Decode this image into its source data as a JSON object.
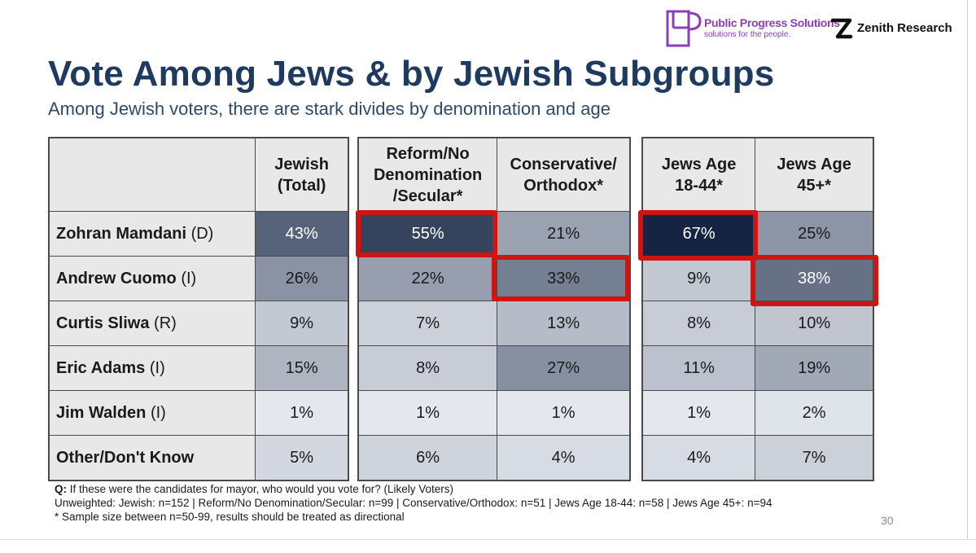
{
  "logos": {
    "pps_name": "Public Progress Solutions",
    "pps_tagline": "solutions for the people.",
    "zenith_name": "Zenith Research"
  },
  "title": "Vote Among Jews & by Jewish Subgroups",
  "subtitle": "Among Jewish voters, there are stark divides by denomination and age",
  "table": {
    "columns": [
      "Jewish\n(Total)",
      "Reform/No\nDenomination\n/Secular*",
      "Conservative/\nOrthodox*",
      "Jews Age\n18-44*",
      "Jews Age\n45+*"
    ],
    "rows": [
      {
        "name": "Zohran Mamdani",
        "party": "(D)",
        "values": [
          "43%",
          "55%",
          "21%",
          "67%",
          "25%"
        ]
      },
      {
        "name": "Andrew Cuomo",
        "party": "(I)",
        "values": [
          "26%",
          "22%",
          "33%",
          "9%",
          "38%"
        ]
      },
      {
        "name": "Curtis Sliwa",
        "party": "(R)",
        "values": [
          "9%",
          "7%",
          "13%",
          "8%",
          "10%"
        ]
      },
      {
        "name": "Eric Adams",
        "party": "(I)",
        "values": [
          "15%",
          "8%",
          "27%",
          "11%",
          "19%"
        ]
      },
      {
        "name": "Jim Walden",
        "party": "(I)",
        "values": [
          "1%",
          "1%",
          "1%",
          "1%",
          "2%"
        ]
      },
      {
        "name": "Other/Don't Know",
        "party": "",
        "values": [
          "5%",
          "6%",
          "4%",
          "4%",
          "7%"
        ]
      }
    ],
    "highlighted_cells": [
      {
        "row": 0,
        "col": 1
      },
      {
        "row": 1,
        "col": 2
      },
      {
        "row": 0,
        "col": 3
      },
      {
        "row": 1,
        "col": 4
      }
    ],
    "highlight_color": "#cf1414"
  },
  "notes": {
    "question_label": "Q:",
    "question": " If these were the candidates for mayor, who would you vote for? (Likely Voters)",
    "unweighted": "Unweighted: Jewish: n=152 | Reform/No Denomination/Secular: n=99 | Conservative/Orthodox: n=51 | Jews Age 18-44: n=58 | Jews Age 45+: n=94",
    "sample_note": "* Sample size between n=50-99, results should be treated as directional"
  },
  "page_number": "30"
}
